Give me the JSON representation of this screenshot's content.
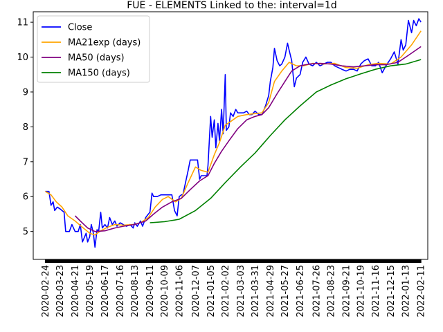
{
  "chart_data": {
    "type": "line",
    "title": "FUE - ELEMENTS Linked to the: interval=1d",
    "xlabel": "",
    "ylabel": "",
    "xlim": [
      "2020-02-01",
      "2022-02-24"
    ],
    "ylim": [
      4.2,
      11.3
    ],
    "yticks": [
      5,
      6,
      7,
      8,
      9,
      10,
      11
    ],
    "xtick_labels": [
      "2020-02-24",
      "2020-03-23",
      "2020-04-21",
      "2020-05-19",
      "2020-06-17",
      "2020-07-16",
      "2020-08-13",
      "2020-09-11",
      "2020-10-09",
      "2020-11-06",
      "2020-12-07",
      "2021-01-05",
      "2021-02-02",
      "2021-03-03",
      "2021-03-31",
      "2021-04-29",
      "2021-05-27",
      "2021-06-25",
      "2021-07-26",
      "2021-08-23",
      "2021-09-21",
      "2021-10-19",
      "2021-11-16",
      "2021-12-15",
      "2022-01-13",
      "2022-02-11"
    ],
    "grid": false,
    "legend_position": "upper-left",
    "series": [
      {
        "name": "Close",
        "color": "#0000ff",
        "points": [
          [
            "2020-02-24",
            6.15
          ],
          [
            "2020-03-02",
            6.15
          ],
          [
            "2020-03-06",
            5.75
          ],
          [
            "2020-03-10",
            5.85
          ],
          [
            "2020-03-13",
            5.6
          ],
          [
            "2020-03-18",
            5.7
          ],
          [
            "2020-03-23",
            5.65
          ],
          [
            "2020-03-27",
            5.6
          ],
          [
            "2020-03-31",
            5.55
          ],
          [
            "2020-04-03",
            5.0
          ],
          [
            "2020-04-07",
            5.0
          ],
          [
            "2020-04-10",
            5.0
          ],
          [
            "2020-04-15",
            5.2
          ],
          [
            "2020-04-21",
            5.0
          ],
          [
            "2020-04-27",
            5.0
          ],
          [
            "2020-05-01",
            5.2
          ],
          [
            "2020-05-05",
            4.7
          ],
          [
            "2020-05-08",
            4.8
          ],
          [
            "2020-05-12",
            4.95
          ],
          [
            "2020-05-15",
            4.7
          ],
          [
            "2020-05-19",
            4.85
          ],
          [
            "2020-05-22",
            5.2
          ],
          [
            "2020-05-26",
            4.95
          ],
          [
            "2020-05-29",
            4.55
          ],
          [
            "2020-06-02",
            5.05
          ],
          [
            "2020-06-05",
            5.0
          ],
          [
            "2020-06-09",
            5.55
          ],
          [
            "2020-06-12",
            5.1
          ],
          [
            "2020-06-17",
            5.2
          ],
          [
            "2020-06-22",
            5.1
          ],
          [
            "2020-06-26",
            5.4
          ],
          [
            "2020-07-01",
            5.2
          ],
          [
            "2020-07-06",
            5.3
          ],
          [
            "2020-07-10",
            5.15
          ],
          [
            "2020-07-16",
            5.25
          ],
          [
            "2020-07-22",
            5.2
          ],
          [
            "2020-07-28",
            5.15
          ],
          [
            "2020-08-04",
            5.2
          ],
          [
            "2020-08-10",
            5.1
          ],
          [
            "2020-08-13",
            5.25
          ],
          [
            "2020-08-18",
            5.15
          ],
          [
            "2020-08-24",
            5.3
          ],
          [
            "2020-08-28",
            5.15
          ],
          [
            "2020-09-03",
            5.4
          ],
          [
            "2020-09-08",
            5.5
          ],
          [
            "2020-09-11",
            5.55
          ],
          [
            "2020-09-15",
            6.1
          ],
          [
            "2020-09-18",
            6.0
          ],
          [
            "2020-09-25",
            6.0
          ],
          [
            "2020-10-02",
            6.05
          ],
          [
            "2020-10-09",
            6.05
          ],
          [
            "2020-10-16",
            6.05
          ],
          [
            "2020-10-23",
            6.05
          ],
          [
            "2020-10-28",
            5.6
          ],
          [
            "2020-11-02",
            5.45
          ],
          [
            "2020-11-06",
            6.0
          ],
          [
            "2020-11-10",
            6.05
          ],
          [
            "2020-11-13",
            6.05
          ],
          [
            "2020-11-18",
            6.4
          ],
          [
            "2020-11-23",
            6.75
          ],
          [
            "2020-11-27",
            7.05
          ],
          [
            "2020-12-02",
            7.05
          ],
          [
            "2020-12-07",
            7.05
          ],
          [
            "2020-12-11",
            7.05
          ],
          [
            "2020-12-15",
            6.5
          ],
          [
            "2020-12-18",
            6.6
          ],
          [
            "2020-12-23",
            6.6
          ],
          [
            "2020-12-29",
            6.6
          ],
          [
            "2020-12-31",
            6.9
          ],
          [
            "2021-01-05",
            8.3
          ],
          [
            "2021-01-08",
            7.7
          ],
          [
            "2021-01-12",
            8.2
          ],
          [
            "2021-01-15",
            7.4
          ],
          [
            "2021-01-19",
            8.1
          ],
          [
            "2021-01-22",
            7.6
          ],
          [
            "2021-01-26",
            8.5
          ],
          [
            "2021-01-29",
            7.8
          ],
          [
            "2021-02-02",
            9.5
          ],
          [
            "2021-02-04",
            7.9
          ],
          [
            "2021-02-09",
            8.0
          ],
          [
            "2021-02-12",
            8.4
          ],
          [
            "2021-02-17",
            8.3
          ],
          [
            "2021-02-22",
            8.5
          ],
          [
            "2021-02-26",
            8.4
          ],
          [
            "2021-03-03",
            8.4
          ],
          [
            "2021-03-09",
            8.4
          ],
          [
            "2021-03-15",
            8.45
          ],
          [
            "2021-03-20",
            8.35
          ],
          [
            "2021-03-25",
            8.35
          ],
          [
            "2021-03-31",
            8.45
          ],
          [
            "2021-04-07",
            8.35
          ],
          [
            "2021-04-13",
            8.35
          ],
          [
            "2021-04-20",
            8.6
          ],
          [
            "2021-04-26",
            8.9
          ],
          [
            "2021-04-29",
            9.3
          ],
          [
            "2021-05-04",
            9.7
          ],
          [
            "2021-05-07",
            10.25
          ],
          [
            "2021-05-12",
            9.9
          ],
          [
            "2021-05-17",
            9.75
          ],
          [
            "2021-05-21",
            9.8
          ],
          [
            "2021-05-27",
            10.0
          ],
          [
            "2021-06-01",
            10.4
          ],
          [
            "2021-06-04",
            10.2
          ],
          [
            "2021-06-09",
            9.9
          ],
          [
            "2021-06-14",
            9.15
          ],
          [
            "2021-06-18",
            9.4
          ],
          [
            "2021-06-25",
            9.5
          ],
          [
            "2021-06-30",
            9.85
          ],
          [
            "2021-07-06",
            10.0
          ],
          [
            "2021-07-12",
            9.8
          ],
          [
            "2021-07-19",
            9.75
          ],
          [
            "2021-07-26",
            9.85
          ],
          [
            "2021-08-02",
            9.75
          ],
          [
            "2021-08-09",
            9.8
          ],
          [
            "2021-08-16",
            9.85
          ],
          [
            "2021-08-23",
            9.85
          ],
          [
            "2021-08-30",
            9.75
          ],
          [
            "2021-09-06",
            9.7
          ],
          [
            "2021-09-13",
            9.65
          ],
          [
            "2021-09-21",
            9.6
          ],
          [
            "2021-09-28",
            9.65
          ],
          [
            "2021-10-05",
            9.65
          ],
          [
            "2021-10-12",
            9.6
          ],
          [
            "2021-10-19",
            9.8
          ],
          [
            "2021-10-26",
            9.9
          ],
          [
            "2021-11-02",
            9.95
          ],
          [
            "2021-11-09",
            9.75
          ],
          [
            "2021-11-16",
            9.75
          ],
          [
            "2021-11-22",
            9.85
          ],
          [
            "2021-11-29",
            9.55
          ],
          [
            "2021-12-06",
            9.75
          ],
          [
            "2021-12-15",
            9.95
          ],
          [
            "2021-12-22",
            10.15
          ],
          [
            "2021-12-29",
            9.8
          ],
          [
            "2022-01-04",
            10.5
          ],
          [
            "2022-01-08",
            10.2
          ],
          [
            "2022-01-13",
            10.35
          ],
          [
            "2022-01-18",
            11.05
          ],
          [
            "2022-01-24",
            10.7
          ],
          [
            "2022-01-28",
            11.05
          ],
          [
            "2022-02-02",
            10.9
          ],
          [
            "2022-02-07",
            11.1
          ],
          [
            "2022-02-11",
            11.0
          ]
        ]
      },
      {
        "name": "MA21exp (days)",
        "color": "#ffa500",
        "points": [
          [
            "2020-02-24",
            6.15
          ],
          [
            "2020-03-06",
            6.05
          ],
          [
            "2020-03-16",
            5.85
          ],
          [
            "2020-03-27",
            5.7
          ],
          [
            "2020-04-07",
            5.45
          ],
          [
            "2020-04-21",
            5.3
          ],
          [
            "2020-05-05",
            5.12
          ],
          [
            "2020-05-19",
            4.95
          ],
          [
            "2020-05-29",
            4.9
          ],
          [
            "2020-06-09",
            5.02
          ],
          [
            "2020-06-22",
            5.12
          ],
          [
            "2020-07-06",
            5.2
          ],
          [
            "2020-07-22",
            5.18
          ],
          [
            "2020-08-10",
            5.2
          ],
          [
            "2020-08-24",
            5.25
          ],
          [
            "2020-09-08",
            5.4
          ],
          [
            "2020-09-21",
            5.7
          ],
          [
            "2020-10-05",
            5.92
          ],
          [
            "2020-10-16",
            6.0
          ],
          [
            "2020-10-30",
            5.85
          ],
          [
            "2020-11-10",
            5.95
          ],
          [
            "2020-11-23",
            6.4
          ],
          [
            "2020-12-07",
            6.85
          ],
          [
            "2020-12-18",
            6.75
          ],
          [
            "2020-12-31",
            6.7
          ],
          [
            "2021-01-12",
            7.2
          ],
          [
            "2021-01-22",
            7.55
          ],
          [
            "2021-02-02",
            8.05
          ],
          [
            "2021-02-12",
            8.15
          ],
          [
            "2021-02-26",
            8.3
          ],
          [
            "2021-03-15",
            8.35
          ],
          [
            "2021-03-31",
            8.38
          ],
          [
            "2021-04-13",
            8.4
          ],
          [
            "2021-04-26",
            8.7
          ],
          [
            "2021-05-07",
            9.3
          ],
          [
            "2021-05-21",
            9.6
          ],
          [
            "2021-06-04",
            9.85
          ],
          [
            "2021-06-18",
            9.75
          ],
          [
            "2021-07-01",
            9.75
          ],
          [
            "2021-07-19",
            9.82
          ],
          [
            "2021-08-09",
            9.8
          ],
          [
            "2021-08-30",
            9.82
          ],
          [
            "2021-09-21",
            9.7
          ],
          [
            "2021-10-12",
            9.68
          ],
          [
            "2021-11-02",
            9.78
          ],
          [
            "2021-11-22",
            9.82
          ],
          [
            "2021-12-15",
            9.8
          ],
          [
            "2022-01-04",
            10.0
          ],
          [
            "2022-01-24",
            10.35
          ],
          [
            "2022-02-11",
            10.75
          ]
        ]
      },
      {
        "name": "MA50 (days)",
        "color": "#800080",
        "points": [
          [
            "2020-04-21",
            5.45
          ],
          [
            "2020-05-01",
            5.3
          ],
          [
            "2020-05-15",
            5.1
          ],
          [
            "2020-05-29",
            5.0
          ],
          [
            "2020-06-17",
            5.02
          ],
          [
            "2020-07-06",
            5.1
          ],
          [
            "2020-07-22",
            5.15
          ],
          [
            "2020-08-13",
            5.2
          ],
          [
            "2020-09-03",
            5.3
          ],
          [
            "2020-09-18",
            5.5
          ],
          [
            "2020-10-05",
            5.7
          ],
          [
            "2020-10-23",
            5.85
          ],
          [
            "2020-11-10",
            5.95
          ],
          [
            "2020-11-27",
            6.2
          ],
          [
            "2020-12-15",
            6.45
          ],
          [
            "2020-12-31",
            6.6
          ],
          [
            "2021-01-12",
            6.95
          ],
          [
            "2021-01-26",
            7.3
          ],
          [
            "2021-02-09",
            7.6
          ],
          [
            "2021-02-26",
            7.95
          ],
          [
            "2021-03-15",
            8.2
          ],
          [
            "2021-03-31",
            8.3
          ],
          [
            "2021-04-13",
            8.35
          ],
          [
            "2021-04-26",
            8.55
          ],
          [
            "2021-05-12",
            8.95
          ],
          [
            "2021-05-27",
            9.3
          ],
          [
            "2021-06-09",
            9.6
          ],
          [
            "2021-06-25",
            9.75
          ],
          [
            "2021-07-12",
            9.8
          ],
          [
            "2021-08-02",
            9.82
          ],
          [
            "2021-08-23",
            9.8
          ],
          [
            "2021-09-13",
            9.75
          ],
          [
            "2021-10-05",
            9.72
          ],
          [
            "2021-10-26",
            9.75
          ],
          [
            "2021-11-16",
            9.78
          ],
          [
            "2021-12-06",
            9.78
          ],
          [
            "2021-12-29",
            9.85
          ],
          [
            "2022-01-18",
            10.05
          ],
          [
            "2022-02-11",
            10.3
          ]
        ]
      },
      {
        "name": "MA150 (days)",
        "color": "#008000",
        "points": [
          [
            "2020-09-11",
            5.25
          ],
          [
            "2020-10-09",
            5.28
          ],
          [
            "2020-11-06",
            5.35
          ],
          [
            "2020-12-07",
            5.6
          ],
          [
            "2021-01-05",
            5.95
          ],
          [
            "2021-02-02",
            6.4
          ],
          [
            "2021-03-03",
            6.85
          ],
          [
            "2021-03-31",
            7.25
          ],
          [
            "2021-04-29",
            7.75
          ],
          [
            "2021-05-27",
            8.2
          ],
          [
            "2021-06-25",
            8.6
          ],
          [
            "2021-07-26",
            9.0
          ],
          [
            "2021-08-23",
            9.2
          ],
          [
            "2021-09-21",
            9.38
          ],
          [
            "2021-10-19",
            9.52
          ],
          [
            "2021-11-16",
            9.65
          ],
          [
            "2021-12-15",
            9.75
          ],
          [
            "2022-01-13",
            9.8
          ],
          [
            "2022-02-11",
            9.93
          ]
        ]
      }
    ]
  }
}
